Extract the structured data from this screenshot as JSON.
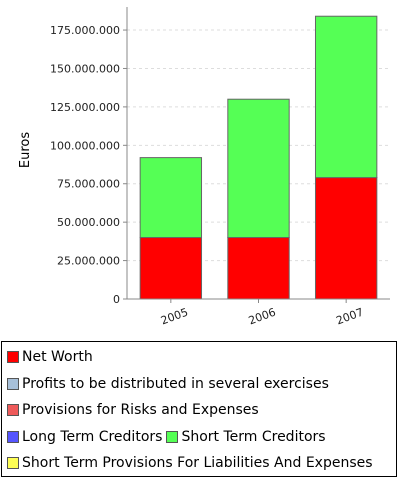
{
  "chart_data": {
    "type": "bar",
    "stacked": true,
    "categories": [
      "2005",
      "2006",
      "2007"
    ],
    "ylabel": "Euros",
    "xlabel": "",
    "ylim": [
      0,
      190000000
    ],
    "y_ticks": [
      "0",
      "25.000.000",
      "50.000.000",
      "75.000.000",
      "100.000.000",
      "125.000.000",
      "150.000.000",
      "175.000.000"
    ],
    "y_tick_values": [
      0,
      25000000,
      50000000,
      75000000,
      100000000,
      125000000,
      150000000,
      175000000
    ],
    "grid": true,
    "legend_position": "bottom",
    "series": [
      {
        "name": "Net Worth",
        "color": "#ff0000",
        "values": [
          40000000,
          40000000,
          79000000
        ]
      },
      {
        "name": "Profits to be distributed in several exercises",
        "color": "#a7c0d9",
        "values": [
          0,
          0,
          0
        ]
      },
      {
        "name": "Provisions for Risks and Expenses",
        "color": "#ee5a5a",
        "values": [
          0,
          0,
          0
        ]
      },
      {
        "name": "Long Term Creditors",
        "color": "#5555ff",
        "values": [
          0,
          0,
          0
        ]
      },
      {
        "name": "Short Term Creditors",
        "color": "#55ff55",
        "values": [
          52000000,
          90000000,
          105000000
        ]
      },
      {
        "name": "Short Term Provisions For Liabilities And Expenses",
        "color": "#ffff55",
        "values": [
          0,
          0,
          0
        ]
      }
    ]
  },
  "legend": {
    "rows": [
      [
        0
      ],
      [
        1
      ],
      [
        2
      ],
      [
        3,
        4
      ],
      [
        5
      ]
    ]
  }
}
